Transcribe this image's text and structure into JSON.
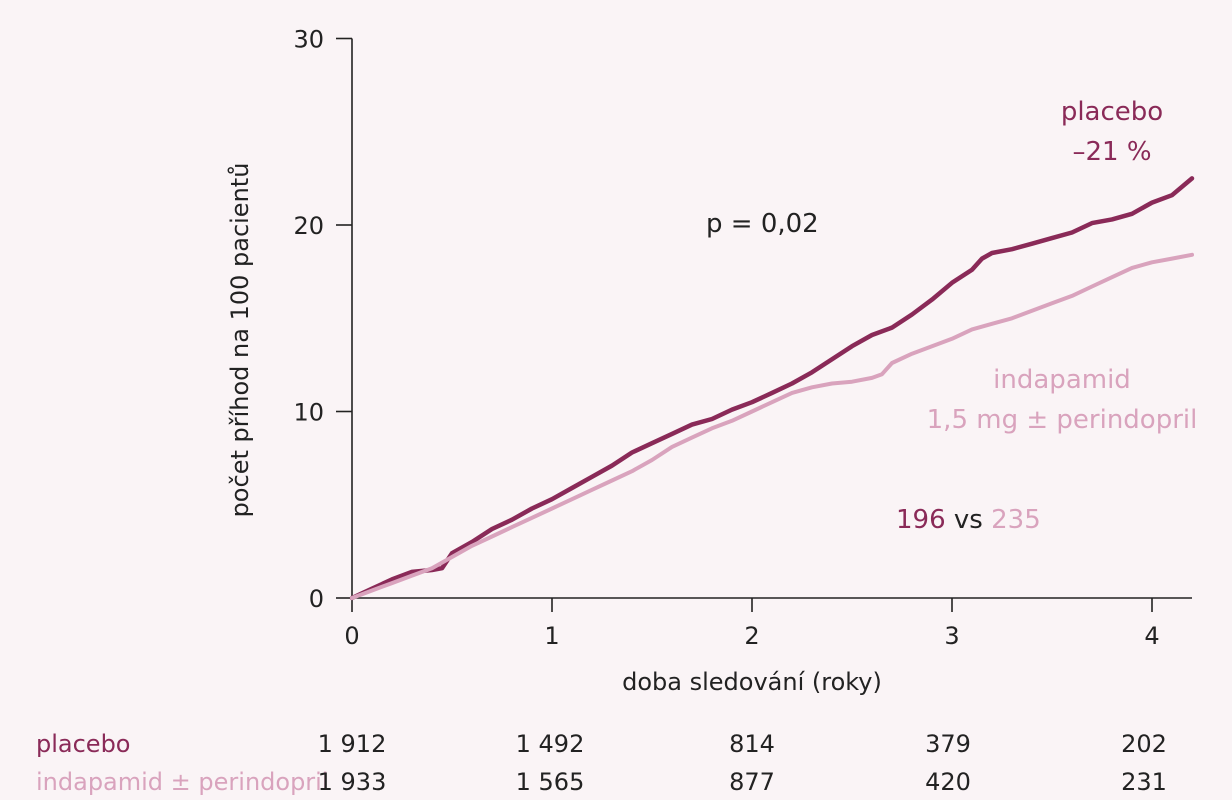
{
  "chart_data": {
    "type": "line",
    "xlabel": "doba sledování (roky)",
    "ylabel": "počet příhod na 100 pacientů",
    "xlim": [
      0,
      4.2
    ],
    "ylim": [
      0,
      30
    ],
    "x_ticks": [
      "0",
      "1",
      "2",
      "3",
      "4"
    ],
    "y_ticks": [
      "0",
      "10",
      "20",
      "30"
    ],
    "grid": false,
    "colors": {
      "placebo": "#8a2a58",
      "indapamid": "#d9a3bd",
      "axis": "#222222",
      "background": "#faf4f6"
    },
    "series": [
      {
        "key": "placebo",
        "name": "placebo",
        "x": [
          0,
          0.1,
          0.2,
          0.3,
          0.4,
          0.45,
          0.5,
          0.6,
          0.7,
          0.8,
          0.9,
          1.0,
          1.1,
          1.2,
          1.3,
          1.4,
          1.5,
          1.6,
          1.7,
          1.8,
          1.9,
          2.0,
          2.1,
          2.2,
          2.3,
          2.4,
          2.5,
          2.6,
          2.7,
          2.8,
          2.9,
          3.0,
          3.1,
          3.15,
          3.2,
          3.3,
          3.4,
          3.5,
          3.6,
          3.7,
          3.8,
          3.9,
          4.0,
          4.1,
          4.2
        ],
        "values": [
          0,
          0.5,
          1.0,
          1.4,
          1.5,
          1.6,
          2.4,
          3.0,
          3.7,
          4.2,
          4.8,
          5.3,
          5.9,
          6.5,
          7.1,
          7.8,
          8.3,
          8.8,
          9.3,
          9.6,
          10.1,
          10.5,
          11.0,
          11.5,
          12.1,
          12.8,
          13.5,
          14.1,
          14.5,
          15.2,
          16.0,
          16.9,
          17.6,
          18.2,
          18.5,
          18.7,
          19.0,
          19.3,
          19.6,
          20.1,
          20.3,
          20.6,
          21.2,
          21.6,
          22.5
        ]
      },
      {
        "key": "indapamid",
        "name": "indapamid 1,5 mg ± perindopril",
        "x": [
          0,
          0.1,
          0.2,
          0.3,
          0.4,
          0.5,
          0.6,
          0.7,
          0.8,
          0.9,
          1.0,
          1.1,
          1.2,
          1.3,
          1.4,
          1.5,
          1.6,
          1.7,
          1.8,
          1.9,
          2.0,
          2.1,
          2.2,
          2.3,
          2.4,
          2.5,
          2.6,
          2.65,
          2.7,
          2.8,
          2.9,
          3.0,
          3.1,
          3.2,
          3.3,
          3.4,
          3.5,
          3.6,
          3.7,
          3.8,
          3.9,
          4.0,
          4.1,
          4.2
        ],
        "values": [
          0,
          0.4,
          0.8,
          1.2,
          1.6,
          2.2,
          2.8,
          3.3,
          3.8,
          4.3,
          4.8,
          5.3,
          5.8,
          6.3,
          6.8,
          7.4,
          8.1,
          8.6,
          9.1,
          9.5,
          10.0,
          10.5,
          11.0,
          11.3,
          11.5,
          11.6,
          11.8,
          12.0,
          12.6,
          13.1,
          13.5,
          13.9,
          14.4,
          14.7,
          15.0,
          15.4,
          15.8,
          16.2,
          16.7,
          17.2,
          17.7,
          18.0,
          18.2,
          18.4
        ]
      }
    ],
    "annotations": {
      "p_value": "p = 0,02",
      "placebo_label": "placebo",
      "reduction": "–21 %",
      "indapamid_label_line1": "indapamid",
      "indapamid_label_line2": "1,5 mg ± perindopril",
      "events_a": "196",
      "events_vs": " vs ",
      "events_b": "235"
    },
    "risk_table": {
      "rows": [
        {
          "key": "placebo",
          "label": "placebo",
          "values": [
            "1 912",
            "1 492",
            "814",
            "379",
            "202"
          ]
        },
        {
          "key": "indapamid",
          "label": "indapamid ± perindopril",
          "values": [
            "1 933",
            "1 565",
            "877",
            "420",
            "231"
          ]
        }
      ]
    }
  }
}
